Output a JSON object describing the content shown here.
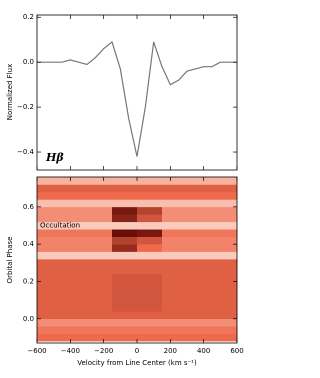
{
  "chart_data": [
    {
      "type": "line",
      "ylabel": "Normalized Flux",
      "annotation": "Hβ",
      "color": "#777777",
      "x": [
        -600,
        -550,
        -500,
        -450,
        -400,
        -350,
        -300,
        -250,
        -200,
        -150,
        -100,
        -50,
        0,
        50,
        100,
        150,
        200,
        250,
        300,
        350,
        400,
        450,
        500,
        550,
        600
      ],
      "values": [
        0.0,
        0.0,
        0.0,
        0.0,
        0.01,
        0.0,
        -0.01,
        0.02,
        0.06,
        0.09,
        -0.03,
        -0.25,
        -0.42,
        -0.2,
        0.09,
        -0.02,
        -0.1,
        -0.08,
        -0.04,
        -0.03,
        -0.02,
        -0.02,
        0.0,
        0.0,
        0.0
      ],
      "xlim": [
        -600,
        600
      ],
      "ylim": [
        -0.48,
        0.21
      ],
      "xticks": [
        {
          "value": -600,
          "label": "−600"
        },
        {
          "value": -400,
          "label": "−400"
        },
        {
          "value": -200,
          "label": "−200"
        },
        0,
        200,
        400,
        600
      ],
      "yticks": [
        0.2,
        {
          "value": 0,
          "label": "0.0"
        },
        {
          "value": -0.2,
          "label": "−0.2"
        },
        {
          "value": -0.4,
          "label": "−0.4"
        }
      ]
    },
    {
      "type": "heatmap",
      "xlabel": "Velocity from Line Center (km s⁻¹)",
      "ylabel": "Orbital Phase",
      "annotation": "Occultation",
      "colormap": [
        "#fde2d8",
        "#ef6a4c",
        "#5a0500"
      ],
      "x_bins": [
        -600,
        -450,
        -300,
        -150,
        0,
        150,
        300,
        450,
        600
      ],
      "y_bins": [
        -0.12,
        -0.08,
        -0.04,
        0.0,
        0.04,
        0.08,
        0.12,
        0.16,
        0.2,
        0.24,
        0.28,
        0.32,
        0.36,
        0.4,
        0.44,
        0.48,
        0.52,
        0.56,
        0.6,
        0.64,
        0.68,
        0.72,
        0.76
      ],
      "values": [
        [
          0.5,
          0.5,
          0.5,
          0.5,
          0.5,
          0.5,
          0.5,
          0.5
        ],
        [
          0.45,
          0.45,
          0.45,
          0.45,
          0.45,
          0.45,
          0.45,
          0.45
        ],
        [
          0.35,
          0.35,
          0.35,
          0.35,
          0.35,
          0.35,
          0.35,
          0.35
        ],
        [
          0.55,
          0.55,
          0.55,
          0.55,
          0.55,
          0.55,
          0.55,
          0.55
        ],
        [
          0.55,
          0.55,
          0.55,
          0.6,
          0.6,
          0.55,
          0.55,
          0.55
        ],
        [
          0.55,
          0.55,
          0.55,
          0.6,
          0.6,
          0.55,
          0.55,
          0.55
        ],
        [
          0.55,
          0.55,
          0.55,
          0.6,
          0.6,
          0.55,
          0.55,
          0.55
        ],
        [
          0.55,
          0.55,
          0.55,
          0.6,
          0.6,
          0.55,
          0.55,
          0.55
        ],
        [
          0.55,
          0.55,
          0.55,
          0.6,
          0.6,
          0.55,
          0.55,
          0.55
        ],
        [
          0.55,
          0.55,
          0.55,
          0.55,
          0.55,
          0.55,
          0.55,
          0.55
        ],
        [
          0.55,
          0.55,
          0.55,
          0.55,
          0.55,
          0.55,
          0.55,
          0.55
        ],
        [
          0.1,
          0.1,
          0.1,
          0.1,
          0.1,
          0.1,
          0.1,
          0.1
        ],
        [
          0.4,
          0.4,
          0.4,
          0.8,
          0.5,
          0.4,
          0.4,
          0.4
        ],
        [
          0.4,
          0.4,
          0.4,
          0.7,
          0.6,
          0.4,
          0.4,
          0.4
        ],
        [
          0.45,
          0.45,
          0.45,
          0.95,
          0.9,
          0.45,
          0.45,
          0.45
        ],
        [
          0.1,
          0.1,
          0.1,
          0.1,
          0.1,
          0.1,
          0.1,
          0.1
        ],
        [
          0.35,
          0.35,
          0.35,
          0.85,
          0.6,
          0.35,
          0.35,
          0.35
        ],
        [
          0.35,
          0.35,
          0.35,
          0.9,
          0.7,
          0.35,
          0.35,
          0.35
        ],
        [
          0.15,
          0.15,
          0.15,
          0.15,
          0.15,
          0.15,
          0.15,
          0.15
        ],
        [
          0.5,
          0.5,
          0.5,
          0.5,
          0.5,
          0.5,
          0.5,
          0.5
        ],
        [
          0.55,
          0.55,
          0.55,
          0.55,
          0.55,
          0.55,
          0.55,
          0.55
        ],
        [
          0.2,
          0.2,
          0.2,
          0.2,
          0.2,
          0.2,
          0.2,
          0.2
        ]
      ],
      "xlim": [
        -600,
        600
      ],
      "ylim": [
        -0.13,
        0.76
      ],
      "xticks": [
        {
          "value": -600,
          "label": "−600"
        },
        {
          "value": -400,
          "label": "−400"
        },
        {
          "value": -200,
          "label": "−200"
        },
        0,
        200,
        400,
        600
      ],
      "yticks": [
        {
          "value": 0,
          "label": "0.0"
        },
        0.2,
        0.4,
        0.6
      ]
    }
  ]
}
